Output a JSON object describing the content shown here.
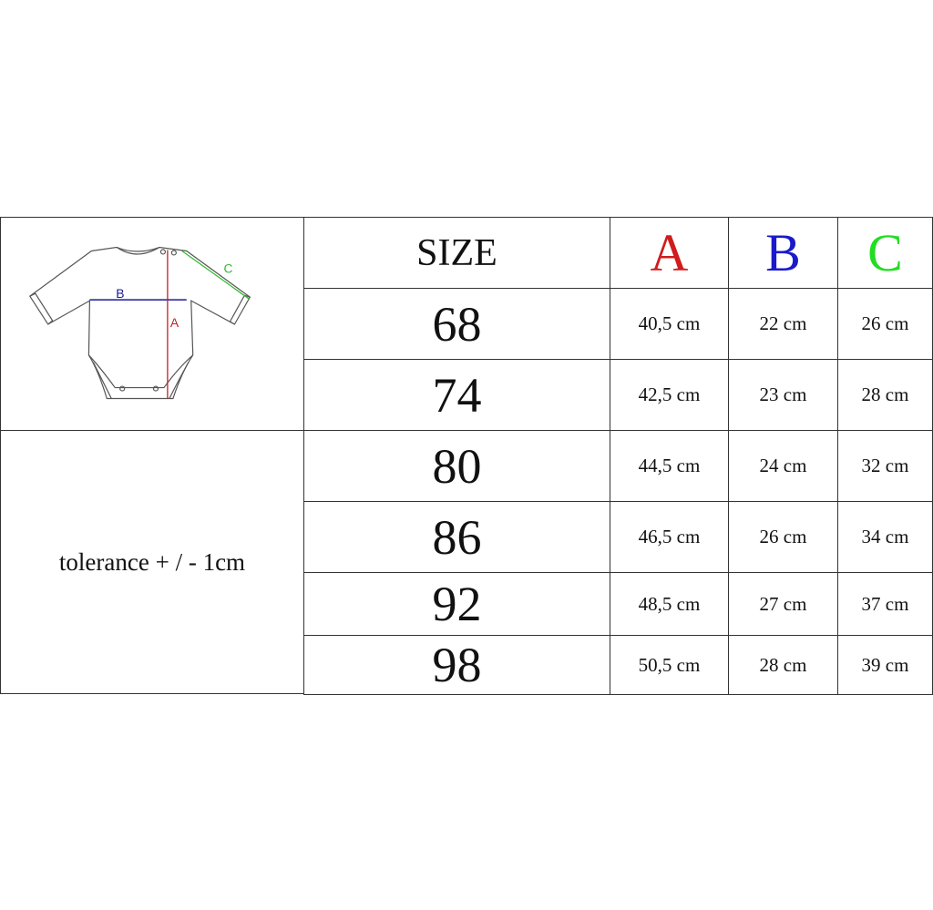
{
  "table": {
    "header": {
      "size": "SIZE",
      "a": "A",
      "b": "B",
      "c": "C"
    },
    "header_colors": {
      "a": "#d01c1c",
      "b": "#1a1acc",
      "c": "#22dd22"
    },
    "rows": [
      {
        "size": "68",
        "a": "40,5 cm",
        "b": "22 cm",
        "c": "26 cm"
      },
      {
        "size": "74",
        "a": "42,5 cm",
        "b": "23 cm",
        "c": "28 cm"
      },
      {
        "size": "80",
        "a": "44,5 cm",
        "b": "24 cm",
        "c": "32 cm"
      },
      {
        "size": "86",
        "a": "46,5 cm",
        "b": "26 cm",
        "c": "34 cm"
      },
      {
        "size": "92",
        "a": "48,5 cm",
        "b": "27 cm",
        "c": "37 cm"
      },
      {
        "size": "98",
        "a": "50,5 cm",
        "b": "28 cm",
        "c": "39 cm"
      }
    ]
  },
  "diagram": {
    "label_a": "A",
    "label_b": "B",
    "label_c": "C"
  },
  "tolerance": "tolerance + / - 1cm"
}
